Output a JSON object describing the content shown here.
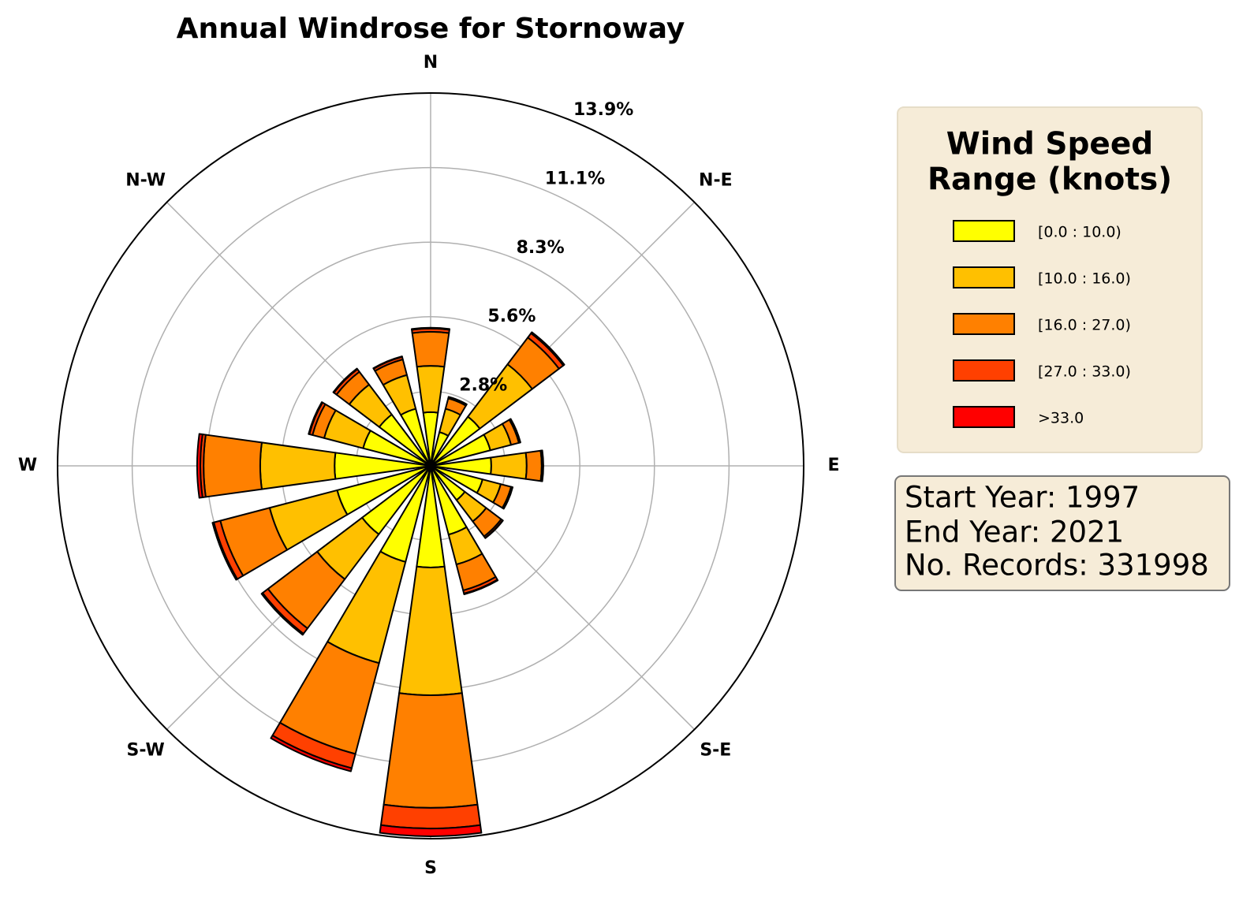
{
  "chart_data": {
    "type": "windrose",
    "title": "Annual Windrose for Stornoway",
    "categories": [
      "N",
      null,
      "N-E",
      null,
      "E",
      null,
      "S-E",
      null,
      "S",
      null,
      "S-W",
      null,
      "W",
      null,
      "N-W",
      null
    ],
    "series": [
      {
        "name": "[0.0 : 10.0)",
        "color": "#ffff00",
        "values": [
          2.0,
          1.3,
          2.3,
          2.3,
          2.26,
          2.0,
          1.6,
          2.65,
          3.79,
          3.7,
          3.2,
          3.6,
          3.58,
          2.6,
          2.4,
          2.2
        ]
      },
      {
        "name": "[10.0 : 16.0)",
        "color": "#ffc000",
        "values": [
          1.73,
          0.9,
          2.45,
          0.8,
          1.32,
          0.7,
          1.0,
          1.15,
          4.76,
          3.9,
          2.1,
          2.6,
          2.77,
          1.5,
          1.4,
          1.3
        ]
      },
      {
        "name": "[16.0 : 27.0)",
        "color": "#ff8000",
        "values": [
          1.27,
          0.4,
          1.25,
          0.3,
          0.56,
          0.4,
          0.7,
          1.0,
          4.2,
          3.5,
          2.3,
          1.9,
          2.11,
          0.45,
          0.6,
          0.6
        ]
      },
      {
        "name": "[27.0 : 33.0)",
        "color": "#ff4000",
        "values": [
          0.12,
          0.05,
          0.2,
          0.05,
          0.05,
          0.05,
          0.07,
          0.12,
          0.77,
          0.55,
          0.25,
          0.25,
          0.12,
          0.12,
          0.12,
          0.1
        ]
      },
      {
        "name": ">33.0",
        "color": "#ff0000",
        "values": [
          0.03,
          0.01,
          0.05,
          0.01,
          0.01,
          0.01,
          0.01,
          0.03,
          0.29,
          0.12,
          0.05,
          0.05,
          0.12,
          0.03,
          0.03,
          0.02
        ]
      }
    ],
    "ylim": [
      0,
      13.9
    ],
    "yticks": [
      {
        "value": 2.78,
        "label": "2.8%"
      },
      {
        "value": 5.56,
        "label": "5.6%"
      },
      {
        "value": 8.34,
        "label": "8.3%"
      },
      {
        "value": 11.12,
        "label": "11.1%"
      },
      {
        "value": 13.9,
        "label": "13.9%"
      }
    ],
    "grid": true,
    "legend_title": [
      "Wind Speed",
      "Range (knots)"
    ],
    "info": [
      "Start Year: 1997",
      "End Year: 2021",
      "No. Records: 331998"
    ]
  }
}
